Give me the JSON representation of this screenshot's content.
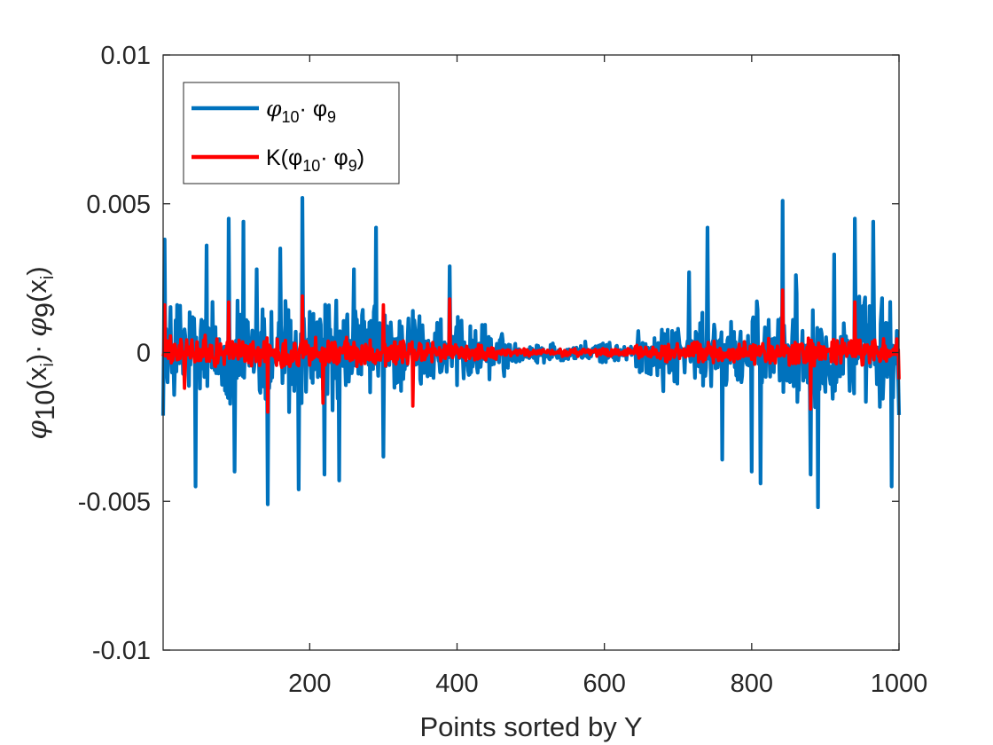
{
  "chart_data": {
    "type": "line",
    "xlabel": "Points sorted by Y",
    "ylabel": {
      "phi_a": "φ",
      "sub_a": "10",
      "mid_a": "(x",
      "sub_i1": "i",
      "close_a": ")· ",
      "phi_b": "φ",
      "sub_b": "9",
      "mid_b": "(x",
      "sub_i2": "i",
      "close_b": ")"
    },
    "xlim": [
      1,
      1000
    ],
    "ylim": [
      -0.01,
      0.01
    ],
    "x_ticks": [
      200,
      400,
      600,
      800,
      1000
    ],
    "x_tick_labels": [
      "200",
      "400",
      "600",
      "800",
      "1000"
    ],
    "y_ticks": [
      -0.01,
      -0.005,
      0,
      0.005,
      0.01
    ],
    "y_tick_labels": [
      "-0.01",
      "-0.005",
      "0",
      "0.005",
      "0.01"
    ],
    "grid": false,
    "legend_position": "top-left",
    "series": [
      {
        "name": "φ10· φ9",
        "legend": {
          "base": "φ",
          "sub1": "10",
          "mid": "· φ",
          "sub2": "9",
          "end": ""
        },
        "color": "#0072BD",
        "style": "noisy-signal",
        "envelope": {
          "outer_amplitude": 0.0045,
          "center_amplitude": 0.00025,
          "quiet_range": [
            470,
            640
          ]
        },
        "peaks": [
          {
            "x": 3,
            "y": 0.0038
          },
          {
            "x": 7,
            "y": -0.001
          },
          {
            "x": 20,
            "y": 0.0016
          },
          {
            "x": 45,
            "y": -0.0045
          },
          {
            "x": 60,
            "y": 0.0036
          },
          {
            "x": 90,
            "y": 0.0045
          },
          {
            "x": 98,
            "y": -0.004
          },
          {
            "x": 110,
            "y": 0.0044
          },
          {
            "x": 128,
            "y": 0.0028
          },
          {
            "x": 143,
            "y": -0.0051
          },
          {
            "x": 160,
            "y": 0.0035
          },
          {
            "x": 172,
            "y": -0.002
          },
          {
            "x": 185,
            "y": -0.0046
          },
          {
            "x": 190,
            "y": 0.0052
          },
          {
            "x": 205,
            "y": 0.0013
          },
          {
            "x": 220,
            "y": -0.0041
          },
          {
            "x": 240,
            "y": -0.0043
          },
          {
            "x": 260,
            "y": 0.0028
          },
          {
            "x": 290,
            "y": 0.0042
          },
          {
            "x": 300,
            "y": -0.0035
          },
          {
            "x": 340,
            "y": 0.0014
          },
          {
            "x": 390,
            "y": 0.0029
          },
          {
            "x": 400,
            "y": -0.0011
          },
          {
            "x": 680,
            "y": -0.0013
          },
          {
            "x": 715,
            "y": 0.0027
          },
          {
            "x": 740,
            "y": 0.0042
          },
          {
            "x": 760,
            "y": -0.0036
          },
          {
            "x": 800,
            "y": -0.004
          },
          {
            "x": 812,
            "y": -0.0044
          },
          {
            "x": 842,
            "y": 0.0051
          },
          {
            "x": 860,
            "y": 0.0026
          },
          {
            "x": 880,
            "y": -0.0041
          },
          {
            "x": 890,
            "y": -0.0052
          },
          {
            "x": 912,
            "y": 0.0033
          },
          {
            "x": 940,
            "y": 0.0045
          },
          {
            "x": 965,
            "y": 0.0044
          },
          {
            "x": 990,
            "y": -0.0045
          },
          {
            "x": 1000,
            "y": -0.0021
          }
        ]
      },
      {
        "name": "K(φ10· φ9)",
        "legend": {
          "base": "K(φ",
          "sub1": "10",
          "mid": "· φ",
          "sub2": "9",
          "end": ")"
        },
        "color": "#FF0000",
        "style": "noisy-signal",
        "envelope": {
          "outer_amplitude": 0.0012,
          "center_amplitude": 0.0001,
          "quiet_range": [
            470,
            640
          ]
        },
        "peaks": [
          {
            "x": 3,
            "y": 0.0016
          },
          {
            "x": 30,
            "y": -0.0012
          },
          {
            "x": 90,
            "y": 0.0017
          },
          {
            "x": 143,
            "y": -0.002
          },
          {
            "x": 190,
            "y": 0.0019
          },
          {
            "x": 218,
            "y": -0.0017
          },
          {
            "x": 300,
            "y": 0.0016
          },
          {
            "x": 340,
            "y": -0.0018
          },
          {
            "x": 390,
            "y": 0.0018
          },
          {
            "x": 842,
            "y": 0.0021
          },
          {
            "x": 880,
            "y": -0.0019
          },
          {
            "x": 940,
            "y": 0.0017
          },
          {
            "x": 1000,
            "y": -0.0009
          }
        ]
      }
    ]
  }
}
